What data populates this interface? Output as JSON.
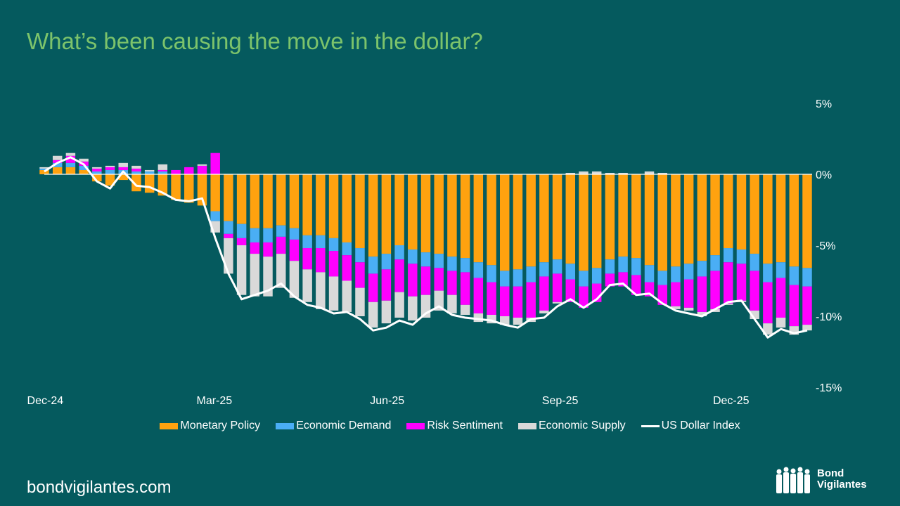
{
  "title": "What’s been causing the move in the dollar?",
  "footer": {
    "site": "bondvigilantes.com",
    "logo_line1": "Bond",
    "logo_line2": "Vigilantes"
  },
  "colors": {
    "background": "#055a5e",
    "title": "#7cc36b",
    "Monetary Policy": "#ffa20f",
    "Economic Demand": "#4aaef5",
    "Risk Sentiment": "#ff00ff",
    "Economic Supply": "#d9d9d9",
    "US Dollar Index": "#ffffff"
  },
  "chart_data": {
    "type": "bar",
    "stacked": true,
    "title": "What’s been causing the move in the dollar?",
    "xlabel": "",
    "ylabel": "",
    "ylim": [
      -15,
      5
    ],
    "y_ticks": [
      "5%",
      "0%",
      "-5%",
      "-10%",
      "-15%"
    ],
    "y_tick_values": [
      5,
      0,
      -5,
      -10,
      -15
    ],
    "x_ticks": [
      "Dec-24",
      "Mar-25",
      "Jun-25",
      "Sep-25",
      "Dec-25"
    ],
    "x_tick_dates": [
      "2024-12-01",
      "2025-03-01",
      "2025-06-01",
      "2025-09-01",
      "2025-12-01"
    ],
    "grid": false,
    "legend": "bottom",
    "x": [
      "2024-12-02",
      "2024-12-09",
      "2024-12-16",
      "2024-12-23",
      "2024-12-30",
      "2025-01-06",
      "2025-01-13",
      "2025-01-20",
      "2025-01-27",
      "2025-02-03",
      "2025-02-10",
      "2025-02-17",
      "2025-02-24",
      "2025-03-03",
      "2025-03-10",
      "2025-03-17",
      "2025-03-24",
      "2025-03-31",
      "2025-04-07",
      "2025-04-14",
      "2025-04-21",
      "2025-04-28",
      "2025-05-05",
      "2025-05-12",
      "2025-05-19",
      "2025-05-26",
      "2025-06-02",
      "2025-06-09",
      "2025-06-16",
      "2025-06-23",
      "2025-06-30",
      "2025-07-07",
      "2025-07-14",
      "2025-07-21",
      "2025-07-28",
      "2025-08-04",
      "2025-08-11",
      "2025-08-18",
      "2025-08-25",
      "2025-09-01",
      "2025-09-08",
      "2025-09-15",
      "2025-09-22",
      "2025-09-29",
      "2025-10-06",
      "2025-10-13",
      "2025-10-20",
      "2025-10-27",
      "2025-11-03",
      "2025-11-10",
      "2025-11-17",
      "2025-11-24",
      "2025-12-01",
      "2025-12-08",
      "2025-12-15",
      "2025-12-22",
      "2025-12-29",
      "2026-01-05",
      "2026-01-12"
    ],
    "series": [
      {
        "name": "Monetary Policy",
        "kind": "bar",
        "values": [
          0.3,
          0.5,
          0.5,
          0.3,
          -0.5,
          -0.8,
          -0.4,
          -1.2,
          -1.3,
          -1.5,
          -1.8,
          -2.0,
          -2.2,
          -2.6,
          -3.3,
          -3.5,
          -3.8,
          -3.8,
          -3.6,
          -3.8,
          -4.3,
          -4.3,
          -4.5,
          -4.8,
          -5.2,
          -5.8,
          -5.6,
          -5.0,
          -5.3,
          -5.5,
          -5.6,
          -5.8,
          -5.9,
          -6.2,
          -6.4,
          -6.8,
          -6.7,
          -6.5,
          -6.2,
          -6.0,
          -6.3,
          -6.8,
          -6.6,
          -6.0,
          -5.8,
          -5.9,
          -6.4,
          -6.8,
          -6.5,
          -6.3,
          -6.1,
          -5.7,
          -5.2,
          -5.3,
          -5.6,
          -6.3,
          -6.2,
          -6.5,
          -6.6
        ]
      },
      {
        "name": "Economic Demand",
        "kind": "bar",
        "values": [
          0.1,
          0.3,
          0.3,
          0.3,
          0.2,
          0.3,
          0.3,
          0.2,
          0.2,
          0.2,
          0.0,
          0.0,
          0.0,
          -0.7,
          -0.9,
          -1.0,
          -1.0,
          -1.0,
          -0.8,
          -0.8,
          -0.9,
          -0.9,
          -0.9,
          -0.9,
          -1.0,
          -1.2,
          -1.1,
          -1.0,
          -1.0,
          -1.0,
          -1.0,
          -1.0,
          -1.0,
          -1.1,
          -1.2,
          -1.1,
          -1.2,
          -1.1,
          -1.0,
          -1.0,
          -1.1,
          -1.1,
          -1.1,
          -1.0,
          -1.1,
          -1.2,
          -1.2,
          -1.0,
          -1.1,
          -1.1,
          -1.1,
          -1.1,
          -1.0,
          -1.0,
          -1.2,
          -1.3,
          -1.1,
          -1.3,
          -1.3
        ]
      },
      {
        "name": "Risk Sentiment",
        "kind": "bar",
        "values": [
          0,
          0.2,
          0.5,
          0.3,
          0.2,
          0.2,
          0.2,
          0.2,
          0,
          0.1,
          0.3,
          0.5,
          0.6,
          1.5,
          -0.3,
          -0.5,
          -0.8,
          -1.0,
          -1.2,
          -1.5,
          -1.5,
          -1.7,
          -1.8,
          -1.8,
          -1.8,
          -2.0,
          -2.2,
          -2.3,
          -2.3,
          -2.0,
          -1.6,
          -1.7,
          -2.3,
          -2.5,
          -2.3,
          -2.1,
          -2.2,
          -2.5,
          -2.4,
          -2.0,
          -1.6,
          -1.5,
          -1.3,
          -0.9,
          -1.0,
          -1.4,
          -1.0,
          -1.4,
          -1.7,
          -2.0,
          -2.5,
          -2.7,
          -2.9,
          -2.6,
          -2.8,
          -2.9,
          -2.8,
          -2.9,
          -2.7
        ]
      },
      {
        "name": "Economic Supply",
        "kind": "bar",
        "values": [
          0.1,
          0.3,
          0.2,
          0.2,
          0.1,
          0.1,
          0.3,
          0.2,
          0.1,
          0.4,
          0,
          0,
          0.1,
          -0.8,
          -2.5,
          -3.5,
          -3.0,
          -2.8,
          -2.4,
          -2.6,
          -2.3,
          -2.6,
          -2.4,
          -2.2,
          -2.0,
          -1.8,
          -1.6,
          -1.8,
          -1.7,
          -1.6,
          -1.4,
          -1.3,
          -0.7,
          -0.6,
          -0.6,
          -0.6,
          -0.5,
          -0.3,
          -0.2,
          -0.1,
          0.1,
          0.2,
          0.2,
          0.1,
          0.1,
          0.0,
          0.2,
          0.1,
          -0.2,
          -0.2,
          -0.3,
          -0.2,
          -0.1,
          -0.1,
          -0.6,
          -0.8,
          -0.7,
          -0.6,
          -0.4
        ]
      },
      {
        "name": "US Dollar Index",
        "kind": "line",
        "values": [
          0.2,
          0.8,
          1.2,
          0.7,
          -0.5,
          -1.0,
          0.2,
          -0.8,
          -0.9,
          -1.3,
          -1.8,
          -1.9,
          -1.7,
          -4.5,
          -7.0,
          -8.8,
          -8.5,
          -8.2,
          -7.7,
          -8.6,
          -9.2,
          -9.4,
          -9.8,
          -9.7,
          -10.2,
          -11.0,
          -10.8,
          -10.3,
          -10.6,
          -9.8,
          -9.3,
          -9.9,
          -10.1,
          -10.2,
          -10.3,
          -10.6,
          -10.8,
          -10.2,
          -10.1,
          -9.3,
          -8.8,
          -9.4,
          -8.8,
          -7.8,
          -7.7,
          -8.5,
          -8.4,
          -9.1,
          -9.6,
          -9.8,
          -10.0,
          -9.5,
          -9.0,
          -8.9,
          -10.2,
          -11.5,
          -10.9,
          -11.2,
          -11.0
        ]
      }
    ]
  }
}
